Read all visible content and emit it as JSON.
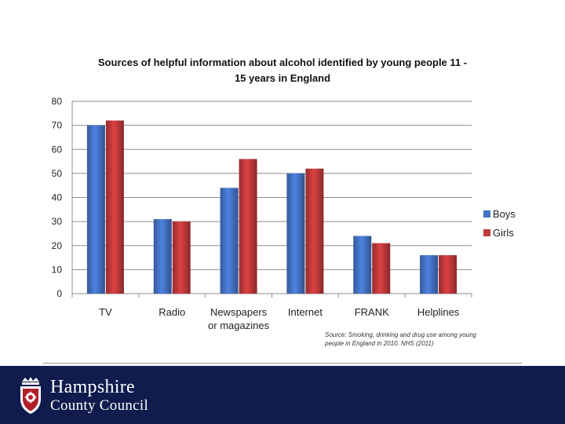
{
  "chart_data": {
    "type": "bar",
    "title": "Sources of helpful information about alcohol identified by young people 11 - 15 years in England",
    "title_line1": "Sources of helpful information about alcohol identified by young people 11 -",
    "title_line2": "15 years in England",
    "categories": [
      "TV",
      "Radio",
      "Newspapers or magazines",
      "Internet",
      "FRANK",
      "Helplines"
    ],
    "category_lines": [
      [
        "TV"
      ],
      [
        "Radio"
      ],
      [
        "Newspapers",
        "or magazines"
      ],
      [
        "Internet"
      ],
      [
        "FRANK"
      ],
      [
        "Helplines"
      ]
    ],
    "series": [
      {
        "name": "Boys",
        "values": [
          70,
          31,
          44,
          50,
          24,
          16
        ],
        "color": "#4472c4"
      },
      {
        "name": "Girls",
        "values": [
          72,
          30,
          56,
          52,
          21,
          16
        ],
        "color": "#c0393b"
      }
    ],
    "ylim": [
      0,
      80
    ],
    "yticks": [
      0,
      10,
      20,
      30,
      40,
      50,
      60,
      70,
      80
    ],
    "xlabel": "",
    "ylabel": "",
    "grid": true,
    "legend_position": "right"
  },
  "source_note": {
    "line1": "Source: Smoking, drinking and drug use among young",
    "line2": "people in England in 2010. NHS (2011)"
  },
  "footer": {
    "org_line1": "Hampshire",
    "org_line2": "County Council",
    "background_color": "#0f1c4d"
  }
}
